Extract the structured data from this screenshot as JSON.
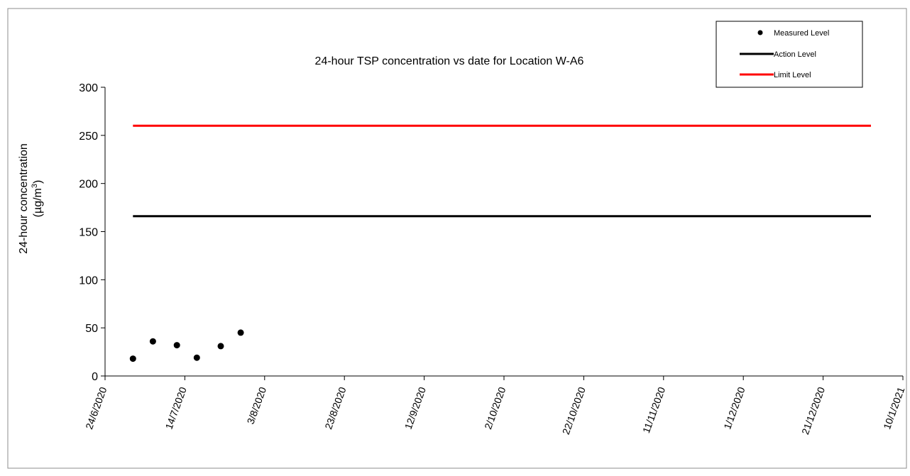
{
  "chart_data": {
    "type": "scatter",
    "title": "24-hour TSP concentration vs date for Location W-A6",
    "ylabel_line1": "24-hour concentration",
    "ylabel_line2_prefix": "(µg/m",
    "ylabel_line2_sup": "3",
    "ylabel_line2_suffix": ")",
    "xlim": [
      "2020-06-24",
      "2021-01-10"
    ],
    "ylim": [
      0,
      300
    ],
    "y_ticks": [
      0,
      50,
      100,
      150,
      200,
      250,
      300
    ],
    "x_ticks": [
      {
        "date": "2020-06-24",
        "label": "24/6/2020"
      },
      {
        "date": "2020-07-14",
        "label": "14/7/2020"
      },
      {
        "date": "2020-08-03",
        "label": "3/8/2020"
      },
      {
        "date": "2020-08-23",
        "label": "23/8/2020"
      },
      {
        "date": "2020-09-12",
        "label": "12/9/2020"
      },
      {
        "date": "2020-10-02",
        "label": "2/10/2020"
      },
      {
        "date": "2020-10-22",
        "label": "22/10/2020"
      },
      {
        "date": "2020-11-11",
        "label": "11/11/2020"
      },
      {
        "date": "2020-12-01",
        "label": "1/12/2020"
      },
      {
        "date": "2020-12-21",
        "label": "21/12/2020"
      },
      {
        "date": "2021-01-10",
        "label": "10/1/2021"
      }
    ],
    "series": [
      {
        "name": "Measured Level",
        "kind": "scatter",
        "color": "#000000",
        "points": [
          {
            "x": "2020-07-01",
            "y": 18
          },
          {
            "x": "2020-07-06",
            "y": 36
          },
          {
            "x": "2020-07-12",
            "y": 32
          },
          {
            "x": "2020-07-17",
            "y": 19
          },
          {
            "x": "2020-07-23",
            "y": 31
          },
          {
            "x": "2020-07-28",
            "y": 45
          }
        ]
      },
      {
        "name": "Action Level",
        "kind": "line",
        "color": "#000000",
        "points": [
          {
            "x": "2020-07-01",
            "y": 166
          },
          {
            "x": "2021-01-02",
            "y": 166
          }
        ]
      },
      {
        "name": "Limit Level",
        "kind": "line",
        "color": "#ff0000",
        "points": [
          {
            "x": "2020-07-01",
            "y": 260
          },
          {
            "x": "2021-01-02",
            "y": 260
          }
        ]
      }
    ],
    "legend_position": "top-right",
    "grid": false
  }
}
